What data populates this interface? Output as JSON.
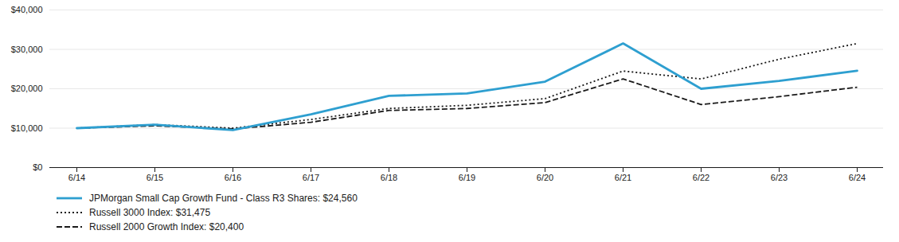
{
  "chart_data": {
    "type": "line",
    "categories": [
      "6/14",
      "6/15",
      "6/16",
      "6/17",
      "6/18",
      "6/19",
      "6/20",
      "6/21",
      "6/22",
      "6/23",
      "6/24"
    ],
    "series": [
      {
        "name": "JPMorgan Small Cap Growth Fund - Class R3 Shares: $24,560",
        "color": "#2E9FD0",
        "line_style": "solid",
        "values": [
          10000,
          10900,
          9500,
          13500,
          18200,
          18800,
          21800,
          31500,
          20000,
          22000,
          24560
        ]
      },
      {
        "name": "Russell 3000 Index: $31,475",
        "color": "#1a1a1a",
        "line_style": "dotted",
        "values": [
          10000,
          10900,
          10000,
          12200,
          15000,
          15800,
          17500,
          24500,
          22500,
          27500,
          31475
        ]
      },
      {
        "name": "Russell 2000 Growth Index: $20,400",
        "color": "#1a1a1a",
        "line_style": "dashed",
        "values": [
          10000,
          10600,
          9800,
          11500,
          14500,
          15000,
          16500,
          22500,
          16000,
          18000,
          20400
        ]
      }
    ],
    "ylim": [
      0,
      40000
    ],
    "yticks": [
      {
        "value": 0,
        "label": "$0"
      },
      {
        "value": 10000,
        "label": "$10,000"
      },
      {
        "value": 20000,
        "label": "$20,000"
      },
      {
        "value": 30000,
        "label": "$30,000"
      },
      {
        "value": 40000,
        "label": "$40,000"
      }
    ],
    "grid": true,
    "legend": "lower left"
  }
}
